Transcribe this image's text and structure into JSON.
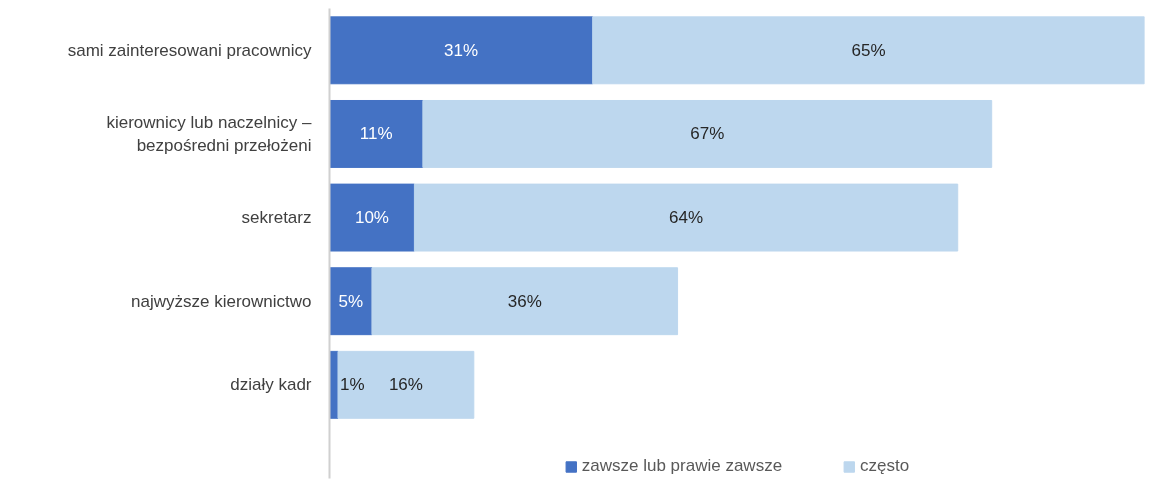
{
  "chart_data": {
    "type": "bar",
    "orientation": "horizontal",
    "stacked": true,
    "legend": "bottom",
    "tick_labels": "y",
    "categories": [
      "sami zainteresowani pracownicy",
      "kierownicy lub naczelnicy –\nbezpośredni przełożeni",
      "sekretarz",
      "najwyższe kierownictwo",
      "działy kadr"
    ],
    "series": [
      {
        "name": "zawsze lub prawie zawsze",
        "color": "#4472c4",
        "values": [
          31,
          11,
          10,
          5,
          1
        ],
        "value_labels": [
          "31%",
          "11%",
          "10%",
          "5%",
          "1%"
        ]
      },
      {
        "name": "często",
        "color": "#bdd7ee",
        "values": [
          65,
          67,
          64,
          36,
          16
        ],
        "value_labels": [
          "65%",
          "67%",
          "64%",
          "36%",
          "16%"
        ]
      }
    ]
  }
}
